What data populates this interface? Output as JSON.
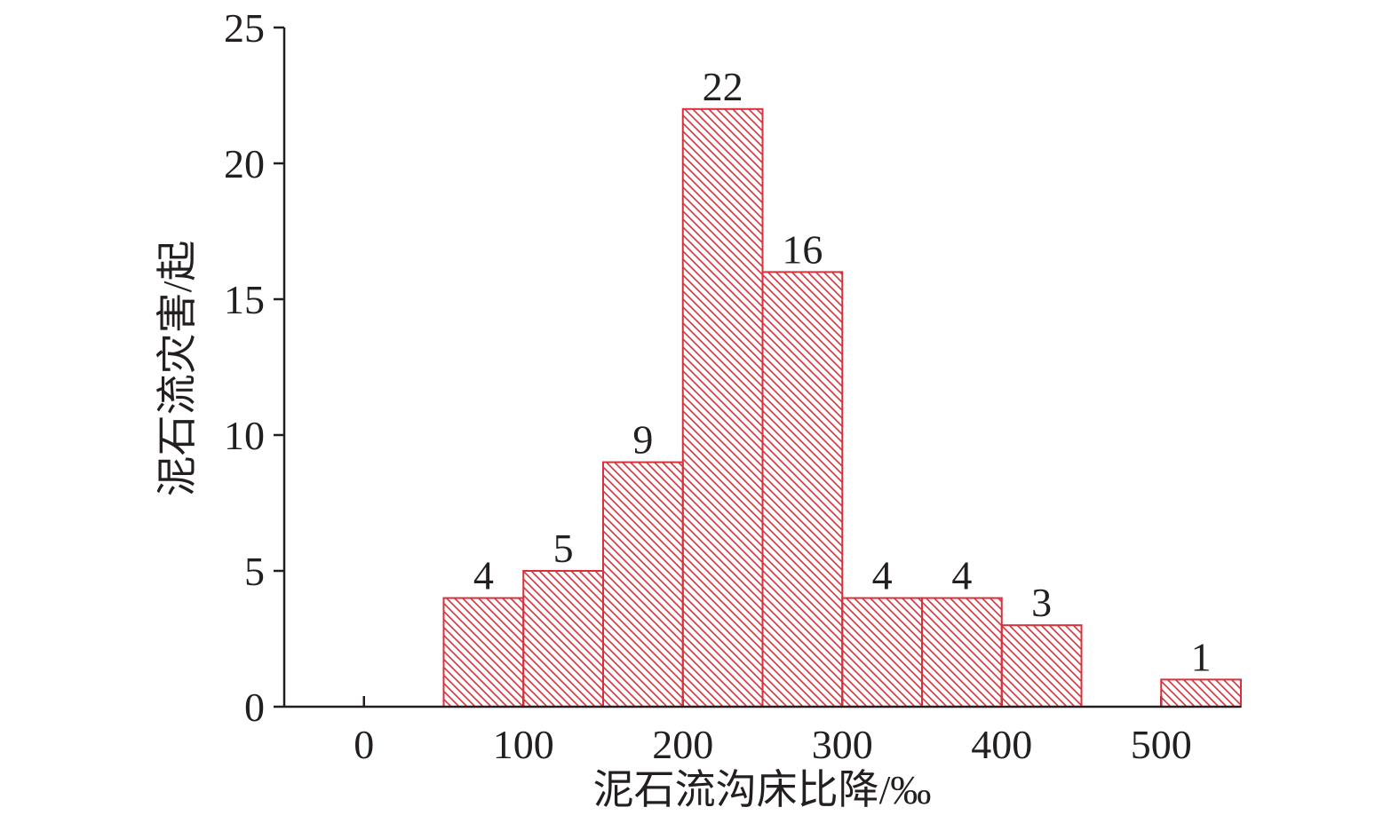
{
  "chart_data": {
    "type": "histogram",
    "x_label": "泥石流沟床比降/‰",
    "y_label": "泥石流灾害/起",
    "bins": [
      50,
      100,
      150,
      200,
      250,
      300,
      350,
      400,
      450,
      500,
      550
    ],
    "values": [
      4,
      5,
      9,
      22,
      16,
      4,
      4,
      3,
      0,
      1
    ],
    "color": "#d7323c",
    "hatch": true,
    "xlim": [
      -50,
      550
    ],
    "xticks": [
      0,
      100,
      200,
      300,
      400,
      500
    ],
    "ylim": [
      0,
      25
    ],
    "yticks": [
      0,
      5,
      10,
      15,
      20,
      25
    ]
  }
}
